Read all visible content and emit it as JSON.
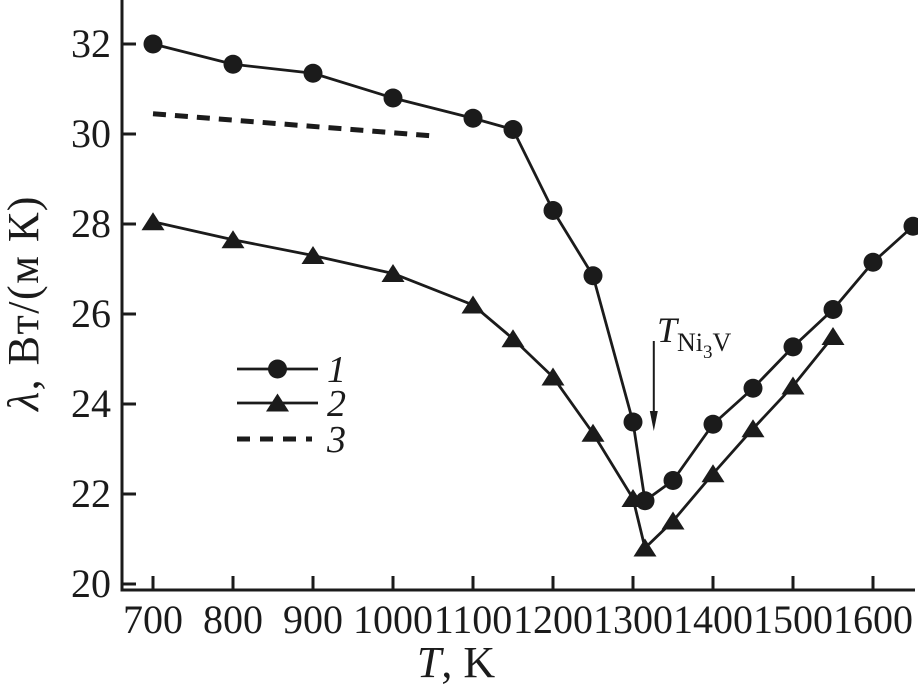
{
  "figure": {
    "background": "#ffffff",
    "ink": "#1b1b1b"
  },
  "axis_labels": {
    "x_main": "T",
    "x_rest": ", K",
    "y_main": "λ",
    "y_rest": ", Вт/(м К)"
  },
  "chart_data": {
    "type": "line",
    "title": "",
    "xlabel": "T, K",
    "ylabel": "λ, Вт/(м К)",
    "xlim": [
      660,
      1660
    ],
    "ylim": [
      19.85,
      33.1
    ],
    "grid": false,
    "legend_position": "inside-center-left",
    "x_ticks": [
      700,
      800,
      900,
      1000,
      1100,
      1200,
      1300,
      1400,
      1500,
      1600
    ],
    "y_ticks": [
      20,
      22,
      24,
      26,
      28,
      30,
      32
    ],
    "series": [
      {
        "name": "1",
        "marker": "circle",
        "line_style": "solid",
        "points": [
          [
            700,
            32.0
          ],
          [
            800,
            31.55
          ],
          [
            900,
            31.35
          ],
          [
            1000,
            30.8
          ],
          [
            1100,
            30.35
          ],
          [
            1150,
            30.1
          ],
          [
            1200,
            28.3
          ],
          [
            1250,
            26.85
          ],
          [
            1300,
            23.6
          ],
          [
            1315,
            21.85
          ],
          [
            1350,
            22.3
          ],
          [
            1400,
            23.55
          ],
          [
            1450,
            24.35
          ],
          [
            1500,
            25.27
          ],
          [
            1550,
            26.1
          ],
          [
            1600,
            27.15
          ],
          [
            1650,
            27.95
          ]
        ]
      },
      {
        "name": "2",
        "marker": "triangle",
        "line_style": "solid",
        "points": [
          [
            700,
            28.05
          ],
          [
            800,
            27.65
          ],
          [
            900,
            27.3
          ],
          [
            1000,
            26.9
          ],
          [
            1100,
            26.2
          ],
          [
            1150,
            25.45
          ],
          [
            1200,
            24.6
          ],
          [
            1250,
            23.35
          ],
          [
            1300,
            21.9
          ],
          [
            1315,
            20.8
          ],
          [
            1350,
            21.4
          ],
          [
            1400,
            22.45
          ],
          [
            1450,
            23.45
          ],
          [
            1500,
            24.4
          ],
          [
            1550,
            25.5
          ]
        ]
      },
      {
        "name": "3",
        "marker": "none",
        "line_style": "dashed",
        "points": [
          [
            700,
            30.45
          ],
          [
            1055,
            29.95
          ]
        ]
      }
    ],
    "legend": [
      {
        "label": "1",
        "marker": "circle",
        "line_style": "solid"
      },
      {
        "label": "2",
        "marker": "triangle",
        "line_style": "solid"
      },
      {
        "label": "3",
        "marker": "none",
        "line_style": "dashed"
      }
    ],
    "annotation": {
      "label": "T_Ni3V",
      "label_main": "T",
      "label_sub1": "Ni",
      "label_sub2": "3",
      "label_sub3": "V",
      "arrow_x": 1326,
      "arrow_from_y": 25.4,
      "arrow_to_y": 23.4
    }
  }
}
